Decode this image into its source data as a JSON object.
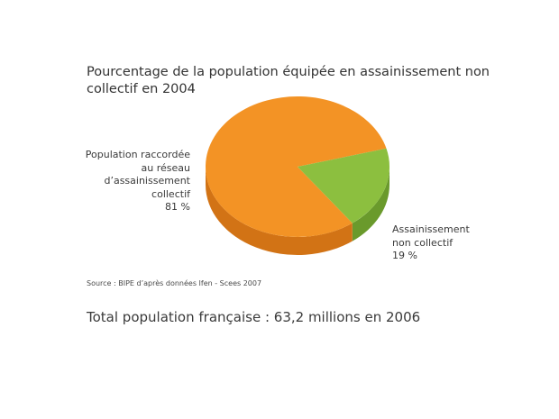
{
  "chart_data": {
    "type": "pie",
    "title": "Pourcentage de la population équipée en assainissement non collectif en 2004",
    "slices": [
      {
        "label_lines": [
          "Population raccordée",
          "au réseau",
          "d’assainissement",
          "collectif"
        ],
        "value": 81,
        "value_label": "81 %",
        "color": "#f39325",
        "side_color": "#d27315"
      },
      {
        "label_lines": [
          "Assainissement",
          "non collectif"
        ],
        "value": 19,
        "value_label": "19 %",
        "color": "#8cbf3f",
        "side_color": "#6a9a2c"
      }
    ],
    "source": "Source : BIPE d’après données Ifen - Scees 2007"
  },
  "footer": {
    "total": "Total population française : 63,2 millions en 2006"
  }
}
